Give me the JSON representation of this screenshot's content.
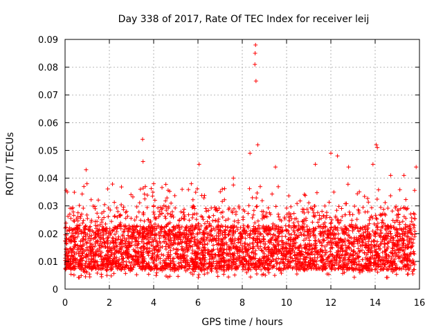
{
  "chart_data": {
    "type": "scatter",
    "title": "Day 338 of 2017, Rate Of TEC Index for receiver leij",
    "xlabel": "GPS time / hours",
    "ylabel": "ROTI / TECUs",
    "xlim": [
      0,
      16
    ],
    "ylim": [
      0,
      0.09
    ],
    "xticks": [
      0,
      2,
      4,
      6,
      8,
      10,
      12,
      14,
      16
    ],
    "xtick_labels": [
      "0",
      "2",
      "4",
      "6",
      "8",
      "10",
      "12",
      "14",
      "16"
    ],
    "yticks": [
      0,
      0.01,
      0.02,
      0.03,
      0.04,
      0.05,
      0.06,
      0.07,
      0.08,
      0.09
    ],
    "ytick_labels": [
      "0",
      "0.01",
      "0.02",
      "0.03",
      "0.04",
      "0.05",
      "0.06",
      "0.07",
      "0.08",
      "0.09"
    ],
    "grid": true,
    "marker": "+",
    "color": "#ff0000",
    "data_x_range": [
      0,
      15.8
    ],
    "dense_band": [
      0.004,
      0.03
    ],
    "series": [
      {
        "name": "ROTI",
        "notable_points": [
          {
            "x": 8.6,
            "y": 0.088
          },
          {
            "x": 8.58,
            "y": 0.085
          },
          {
            "x": 8.57,
            "y": 0.081
          },
          {
            "x": 8.62,
            "y": 0.075
          },
          {
            "x": 3.5,
            "y": 0.054
          },
          {
            "x": 3.52,
            "y": 0.046
          },
          {
            "x": 8.35,
            "y": 0.049
          },
          {
            "x": 8.7,
            "y": 0.052
          },
          {
            "x": 12.0,
            "y": 0.049
          },
          {
            "x": 14.05,
            "y": 0.052
          },
          {
            "x": 14.1,
            "y": 0.051
          },
          {
            "x": 0.95,
            "y": 0.043
          },
          {
            "x": 6.05,
            "y": 0.045
          },
          {
            "x": 7.6,
            "y": 0.04
          },
          {
            "x": 9.5,
            "y": 0.044
          },
          {
            "x": 11.3,
            "y": 0.045
          },
          {
            "x": 12.3,
            "y": 0.048
          },
          {
            "x": 12.8,
            "y": 0.044
          },
          {
            "x": 13.9,
            "y": 0.045
          },
          {
            "x": 15.85,
            "y": 0.044
          },
          {
            "x": 0.1,
            "y": 0.035
          },
          {
            "x": 0.85,
            "y": 0.037
          },
          {
            "x": 3.4,
            "y": 0.036
          },
          {
            "x": 4.0,
            "y": 0.038
          },
          {
            "x": 5.7,
            "y": 0.038
          },
          {
            "x": 14.7,
            "y": 0.041
          },
          {
            "x": 15.3,
            "y": 0.041
          }
        ]
      }
    ]
  }
}
